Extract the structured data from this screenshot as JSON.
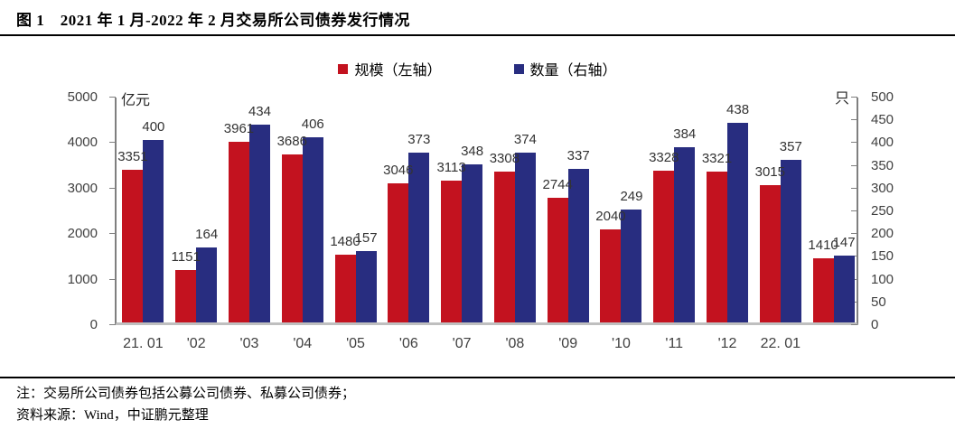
{
  "header": {
    "title": "图 1　2021 年 1 月-2022 年 2 月交易所公司债券发行情况"
  },
  "notes": {
    "line1": "注：交易所公司债券包括公募公司债券、私募公司债券；",
    "line2": "资料来源：Wind，中证鹏元整理"
  },
  "chart_data": {
    "type": "bar",
    "title": "2021年1月-2022年2月交易所公司债券发行情况",
    "categories": [
      "21. 01",
      "'02",
      "'03",
      "'04",
      "'05",
      "'06",
      "'07",
      "'08",
      "'09",
      "'10",
      "'11",
      "'12",
      "22. 01",
      ""
    ],
    "series": [
      {
        "name": "规模（左轴）",
        "axis": "left",
        "color": "#C3121F",
        "values": [
          3351,
          1151,
          3961,
          3686,
          1480,
          3046,
          3113,
          3308,
          2744,
          2040,
          3328,
          3321,
          3015,
          1410
        ]
      },
      {
        "name": "数量（右轴）",
        "axis": "right",
        "color": "#282D80",
        "values": [
          400,
          164,
          434,
          406,
          157,
          373,
          348,
          374,
          337,
          249,
          384,
          438,
          357,
          147
        ]
      }
    ],
    "left_axis": {
      "unit": "亿元",
      "min": 0,
      "max": 5000,
      "step": 1000
    },
    "right_axis": {
      "unit": "只",
      "min": 0,
      "max": 500,
      "step": 50
    },
    "grid": false,
    "legend_position": "top",
    "data_labels": true
  },
  "colors": {
    "scale_red": "#C3121F",
    "count_blue": "#282D80",
    "axis_line": "#7F7F7F",
    "baseline": "#BFBFBF",
    "rule": "#000000"
  }
}
